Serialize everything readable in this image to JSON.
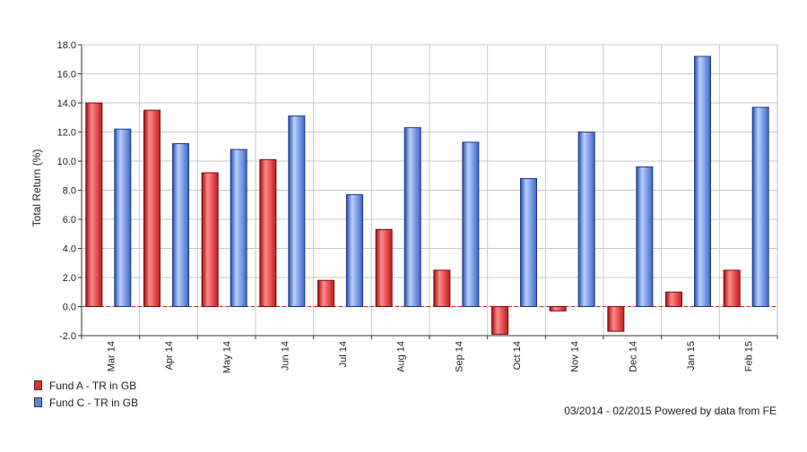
{
  "chart_data": {
    "type": "bar",
    "ylabel": "Total Return (%)",
    "xlabel": "",
    "ylim": [
      -2.0,
      18.0
    ],
    "yticks": [
      "-2.0",
      "0.0",
      "2.0",
      "4.0",
      "6.0",
      "8.0",
      "10.0",
      "12.0",
      "14.0",
      "16.0",
      "18.0"
    ],
    "categories": [
      "Mar 14",
      "Apr 14",
      "May 14",
      "Jun 14",
      "Jul 14",
      "Aug 14",
      "Sep 14",
      "Oct 14",
      "Nov 14",
      "Dec 14",
      "Jan 15",
      "Feb 15"
    ],
    "series": [
      {
        "name": "Fund A - TR in GB",
        "color": "#e03030",
        "values": [
          14.0,
          13.5,
          9.2,
          10.1,
          1.8,
          5.3,
          2.5,
          -1.9,
          -0.3,
          -1.7,
          1.0,
          2.5
        ]
      },
      {
        "name": "Fund C - TR in GB",
        "color": "#5a86d8",
        "values": [
          12.2,
          11.2,
          10.8,
          13.1,
          7.7,
          12.3,
          11.3,
          8.8,
          12.0,
          9.6,
          17.2,
          13.7
        ]
      }
    ],
    "grid": true,
    "zero_line_color": "#cc2222",
    "legend_position": "bottom-left"
  },
  "footer": {
    "note": "03/2014 - 02/2015 Powered by data from FE"
  }
}
